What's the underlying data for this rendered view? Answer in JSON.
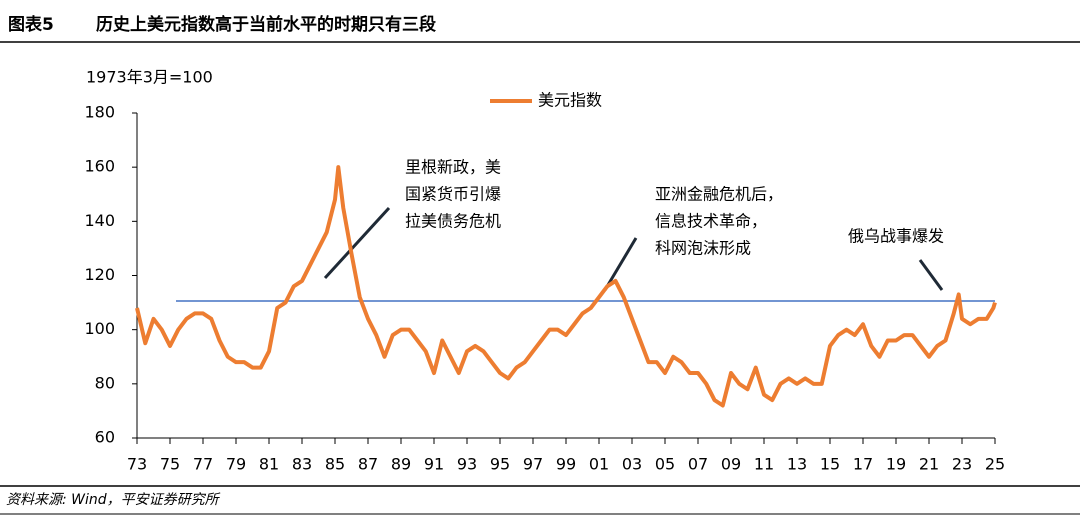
{
  "header": {
    "label": "图表5",
    "title": "历史上美元指数高于当前水平的时期只有三段"
  },
  "chart_data": {
    "type": "line",
    "y_axis_label": "1973年3月=100",
    "x": [
      1973.0,
      1973.5,
      1974.0,
      1974.5,
      1975.0,
      1975.5,
      1976.0,
      1976.5,
      1977.0,
      1977.5,
      1978.0,
      1978.5,
      1979.0,
      1979.5,
      1980.0,
      1980.5,
      1981.0,
      1981.5,
      1982.0,
      1982.5,
      1983.0,
      1983.5,
      1984.0,
      1984.5,
      1985.0,
      1985.2,
      1985.5,
      1986.0,
      1986.5,
      1987.0,
      1987.5,
      1988.0,
      1988.5,
      1989.0,
      1989.5,
      1990.0,
      1990.5,
      1991.0,
      1991.5,
      1992.0,
      1992.5,
      1993.0,
      1993.5,
      1994.0,
      1994.5,
      1995.0,
      1995.5,
      1996.0,
      1996.5,
      1997.0,
      1997.5,
      1998.0,
      1998.5,
      1999.0,
      1999.5,
      2000.0,
      2000.5,
      2001.0,
      2001.5,
      2002.0,
      2002.5,
      2003.0,
      2003.5,
      2004.0,
      2004.5,
      2005.0,
      2005.5,
      2006.0,
      2006.5,
      2007.0,
      2007.5,
      2008.0,
      2008.5,
      2009.0,
      2009.5,
      2010.0,
      2010.5,
      2011.0,
      2011.5,
      2012.0,
      2012.5,
      2013.0,
      2013.5,
      2014.0,
      2014.5,
      2015.0,
      2015.5,
      2016.0,
      2016.5,
      2017.0,
      2017.5,
      2018.0,
      2018.5,
      2019.0,
      2019.5,
      2020.0,
      2020.5,
      2021.0,
      2021.5,
      2022.0,
      2022.5,
      2022.8,
      2023.0,
      2023.5,
      2024.0,
      2024.5,
      2024.9,
      2025.0
    ],
    "series": [
      {
        "name": "美元指数",
        "color": "#ed7d31",
        "values": [
          108,
          95,
          104,
          100,
          94,
          100,
          104,
          106,
          106,
          104,
          96,
          90,
          88,
          88,
          86,
          86,
          92,
          108,
          110,
          116,
          118,
          124,
          130,
          136,
          148,
          160,
          145,
          128,
          112,
          104,
          98,
          90,
          98,
          100,
          100,
          96,
          92,
          84,
          96,
          90,
          84,
          92,
          94,
          92,
          88,
          84,
          82,
          86,
          88,
          92,
          96,
          100,
          100,
          98,
          102,
          106,
          108,
          112,
          116,
          118,
          112,
          104,
          96,
          88,
          88,
          84,
          90,
          88,
          84,
          84,
          80,
          74,
          72,
          84,
          80,
          78,
          86,
          76,
          74,
          80,
          82,
          80,
          82,
          80,
          80,
          94,
          98,
          100,
          98,
          102,
          94,
          90,
          96,
          96,
          98,
          98,
          94,
          90,
          94,
          96,
          106,
          113,
          104,
          102,
          104,
          104,
          108,
          110
        ]
      }
    ],
    "reference_line": {
      "value": 110.6,
      "color": "#4472c4"
    },
    "xlim": [
      1973,
      2025
    ],
    "xticks": [
      {
        "value": 1973,
        "label": "73"
      },
      {
        "value": 1975,
        "label": "75"
      },
      {
        "value": 1977,
        "label": "77"
      },
      {
        "value": 1979,
        "label": "79"
      },
      {
        "value": 1981,
        "label": "81"
      },
      {
        "value": 1983,
        "label": "83"
      },
      {
        "value": 1985,
        "label": "85"
      },
      {
        "value": 1987,
        "label": "87"
      },
      {
        "value": 1989,
        "label": "89"
      },
      {
        "value": 1991,
        "label": "91"
      },
      {
        "value": 1993,
        "label": "93"
      },
      {
        "value": 1995,
        "label": "95"
      },
      {
        "value": 1997,
        "label": "97"
      },
      {
        "value": 1999,
        "label": "99"
      },
      {
        "value": 2001,
        "label": "01"
      },
      {
        "value": 2003,
        "label": "03"
      },
      {
        "value": 2005,
        "label": "05"
      },
      {
        "value": 2007,
        "label": "07"
      },
      {
        "value": 2009,
        "label": "09"
      },
      {
        "value": 2011,
        "label": "11"
      },
      {
        "value": 2013,
        "label": "13"
      },
      {
        "value": 2015,
        "label": "15"
      },
      {
        "value": 2017,
        "label": "17"
      },
      {
        "value": 2019,
        "label": "19"
      },
      {
        "value": 2021,
        "label": "21"
      },
      {
        "value": 2023,
        "label": "23"
      },
      {
        "value": 2025,
        "label": "25"
      }
    ],
    "ylim": [
      60,
      180
    ],
    "yticks": [
      60,
      80,
      100,
      120,
      140,
      160,
      180
    ],
    "legend": "top",
    "annotations": [
      {
        "lines": [
          "里根新政，美",
          "国紧货币引爆",
          "拉美债务危机"
        ]
      },
      {
        "lines": [
          "亚洲金融危机后，",
          "信息技术革命，",
          "科网泡沫形成"
        ]
      },
      {
        "lines": [
          "俄乌战事爆发"
        ]
      }
    ]
  },
  "source": "资料来源: Wind，平安证券研究所"
}
